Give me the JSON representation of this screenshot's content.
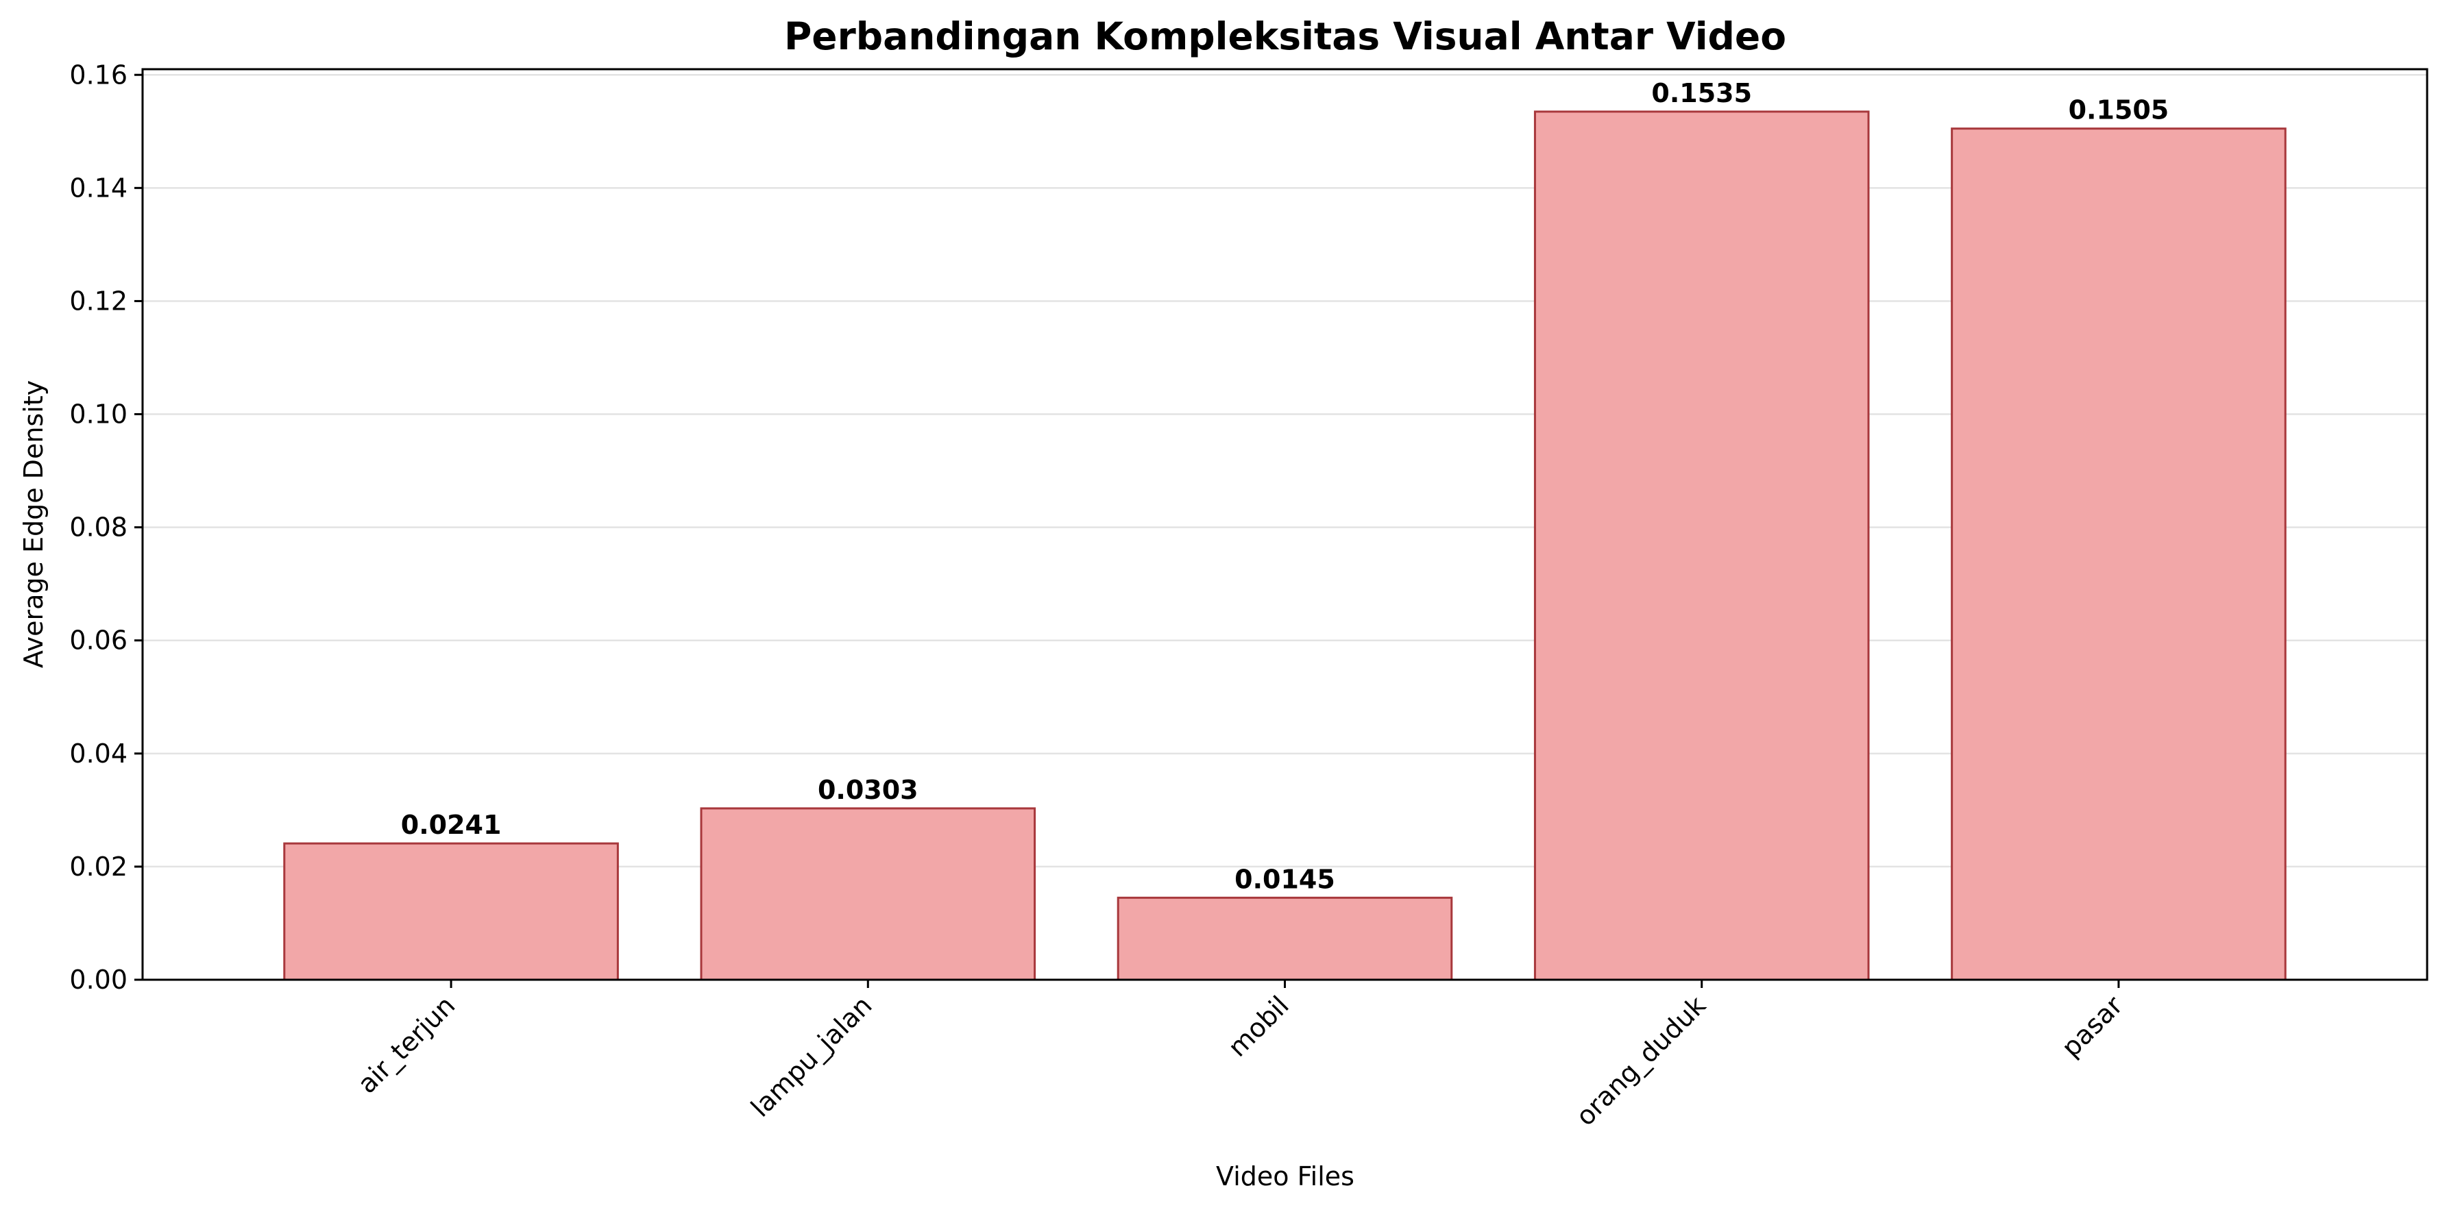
{
  "chart_data": {
    "type": "bar",
    "title": "Perbandingan Kompleksitas Visual Antar Video",
    "xlabel": "Video Files",
    "ylabel": "Average Edge Density",
    "categories": [
      "air_terjun",
      "lampu_jalan",
      "mobil",
      "orang_duduk",
      "pasar"
    ],
    "values": [
      0.0241,
      0.0303,
      0.0145,
      0.1535,
      0.1505
    ],
    "value_labels": [
      "0.0241",
      "0.0303",
      "0.0145",
      "0.1535",
      "0.1505"
    ],
    "yticks": [
      0.0,
      0.02,
      0.04,
      0.06,
      0.08,
      0.1,
      0.12,
      0.14,
      0.16
    ],
    "ytick_labels": [
      "0.00",
      "0.02",
      "0.04",
      "0.06",
      "0.08",
      "0.10",
      "0.12",
      "0.14",
      "0.16"
    ],
    "ylim": [
      0,
      0.161
    ],
    "grid": "y-major",
    "legend": "none",
    "colors": {
      "bar_fill": "#f2a7a8",
      "bar_edge": "#a8383c",
      "grid": "#e3e3e3",
      "axis": "#000000"
    }
  }
}
